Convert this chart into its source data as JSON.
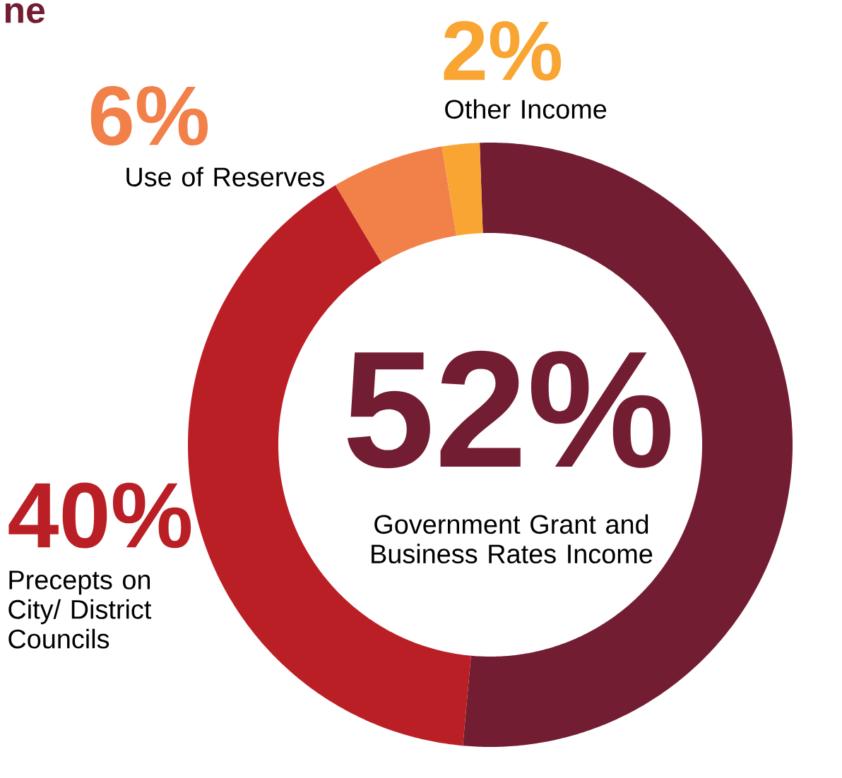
{
  "chart_data": {
    "type": "donut",
    "title": "ne",
    "categories": [
      "Government Grant and Business Rates Income",
      "Precepts on City/ District Councils",
      "Use of Reserves",
      "Other Income"
    ],
    "values": [
      52,
      40,
      6,
      2
    ],
    "colors": [
      "#731d33",
      "#bb1f26",
      "#f28049",
      "#f9a533"
    ],
    "value_labels": [
      "52%",
      "40%",
      "6%",
      "2%"
    ]
  }
}
